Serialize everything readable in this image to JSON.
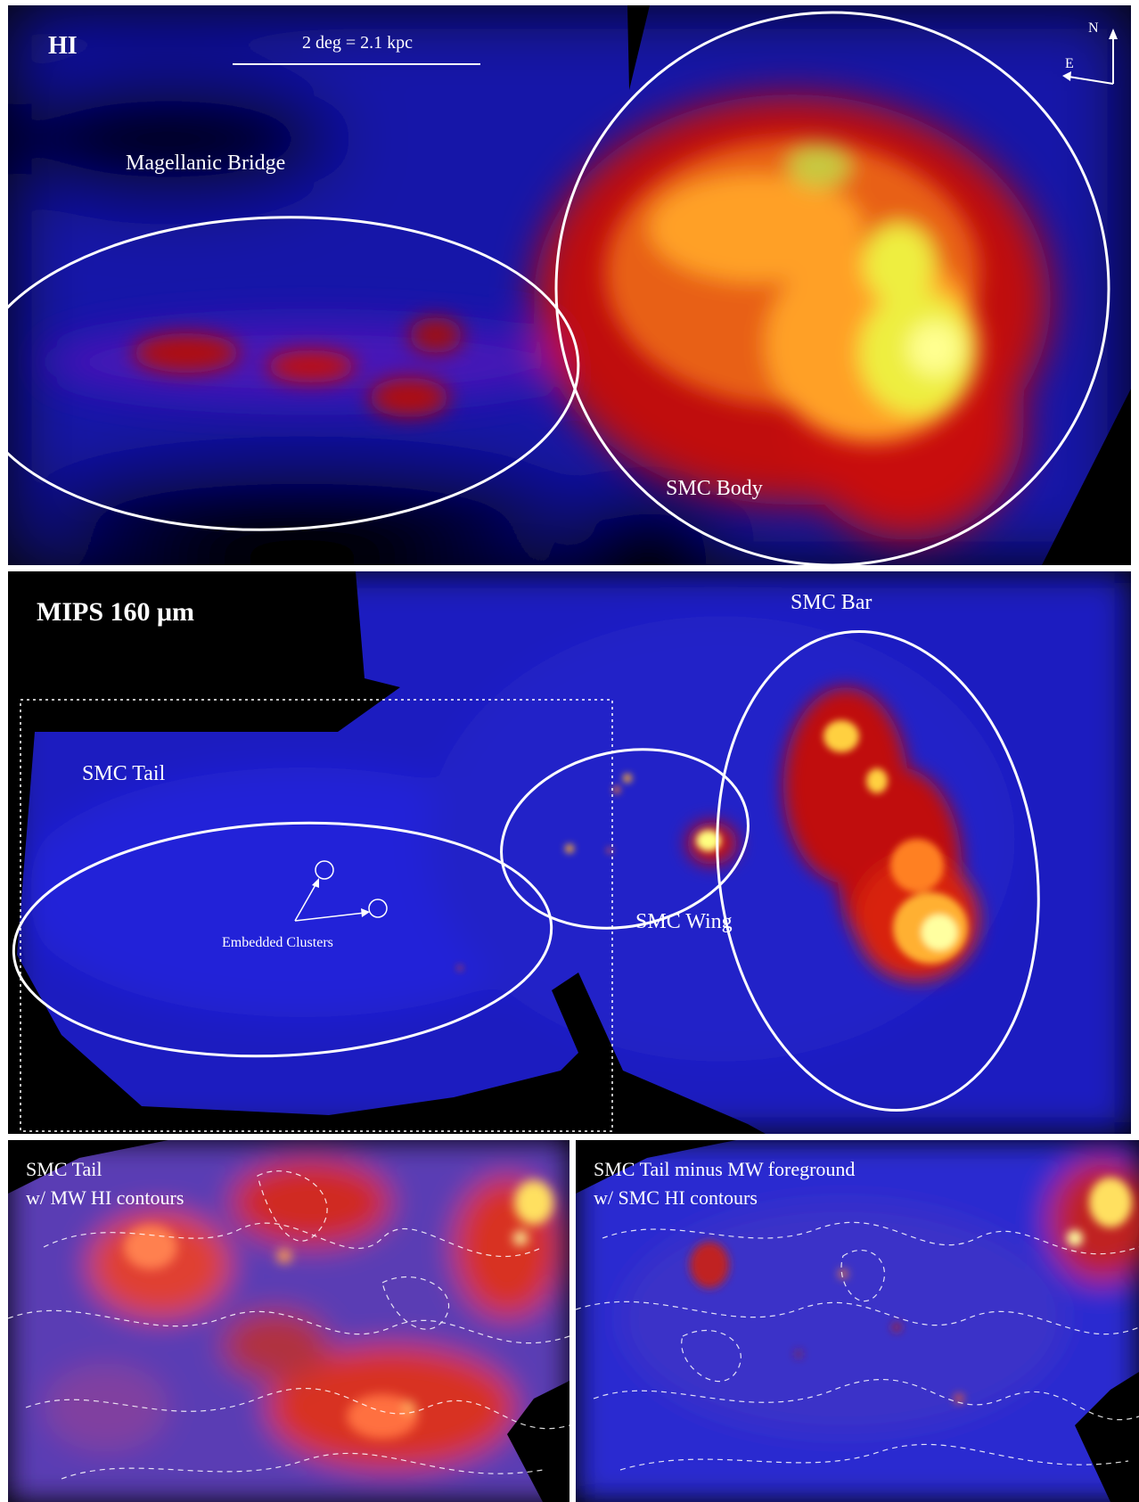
{
  "panels": {
    "hi": {
      "title": "HI",
      "scale_bar": "2 deg = 2.1 kpc",
      "compass_north": "N",
      "compass_east": "E",
      "region_bridge": "Magellanic Bridge",
      "region_body": "SMC Body"
    },
    "mips": {
      "title": "MIPS 160 μm",
      "region_bar": "SMC Bar",
      "region_tail": "SMC Tail",
      "region_wing": "SMC Wing",
      "clusters_label": "Embedded Clusters"
    },
    "tail_mw": {
      "line1": "SMC Tail",
      "line2": "w/ MW HI contours"
    },
    "tail_smc": {
      "line1": "SMC Tail minus MW foreground",
      "line2": "w/ SMC HI contours"
    }
  },
  "colors": {
    "background": "#000000",
    "low_emission": "#1e1ed2",
    "medium_emission": "#d21414",
    "high_emission": "#ffa028",
    "peak_emission": "#ffff50",
    "annotation": "#ffffff"
  }
}
